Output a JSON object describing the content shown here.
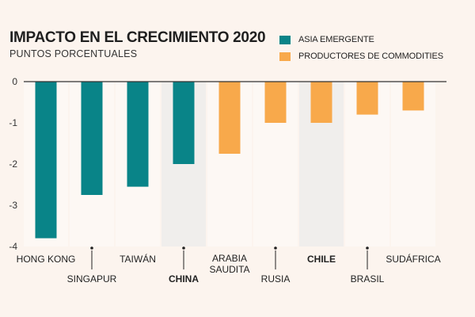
{
  "header": {
    "title": "IMPACTO EN EL CRECIMIENTO 2020",
    "subtitle": "PUNTOS PORCENTUALES"
  },
  "legend": [
    {
      "label": "ASIA EMERGENTE",
      "color": "#098488"
    },
    {
      "label": "PRODUCTORES DE COMMODITIES",
      "color": "#f8a94b"
    }
  ],
  "chart_data": {
    "type": "bar",
    "title": "IMPACTO EN EL CRECIMIENTO 2020",
    "ylabel": "PUNTOS PORCENTUALES",
    "xlabel": "",
    "ylim": [
      -4,
      0
    ],
    "yticks": [
      "0",
      "-1",
      "-2",
      "-3",
      "-4"
    ],
    "categories": [
      {
        "lines": [
          "HONG KONG"
        ],
        "value": -3.8,
        "group": "ASIA EMERGENTE",
        "highlight": false,
        "label_position": "upper"
      },
      {
        "lines": [
          "SINGAPUR"
        ],
        "value": -2.75,
        "group": "ASIA EMERGENTE",
        "highlight": false,
        "label_position": "lower"
      },
      {
        "lines": [
          "TAIWÁN"
        ],
        "value": -2.55,
        "group": "ASIA EMERGENTE",
        "highlight": false,
        "label_position": "upper"
      },
      {
        "lines": [
          "CHINA"
        ],
        "value": -2.0,
        "group": "ASIA EMERGENTE",
        "highlight": true,
        "label_position": "lower"
      },
      {
        "lines": [
          "ARABIA",
          "SAUDITA"
        ],
        "value": -1.75,
        "group": "PRODUCTORES DE COMMODITIES",
        "highlight": false,
        "label_position": "upper"
      },
      {
        "lines": [
          "RUSIA"
        ],
        "value": -1.0,
        "group": "PRODUCTORES DE COMMODITIES",
        "highlight": false,
        "label_position": "lower"
      },
      {
        "lines": [
          "CHILE"
        ],
        "value": -1.0,
        "group": "PRODUCTORES DE COMMODITIES",
        "highlight": true,
        "label_position": "upper"
      },
      {
        "lines": [
          "BRASIL"
        ],
        "value": -0.8,
        "group": "PRODUCTORES DE COMMODITIES",
        "highlight": false,
        "label_position": "lower"
      },
      {
        "lines": [
          "SUDÁFRICA"
        ],
        "value": -0.7,
        "group": "PRODUCTORES DE COMMODITIES",
        "highlight": false,
        "label_position": "upper"
      }
    ],
    "colors": {
      "background": "#fcf4ee",
      "highlight_band": "#f0eeec",
      "column_band": "#fdf8f4",
      "axis": "#333333",
      "ASIA EMERGENTE": "#098488",
      "PRODUCTORES DE COMMODITIES": "#f8a94b"
    }
  }
}
